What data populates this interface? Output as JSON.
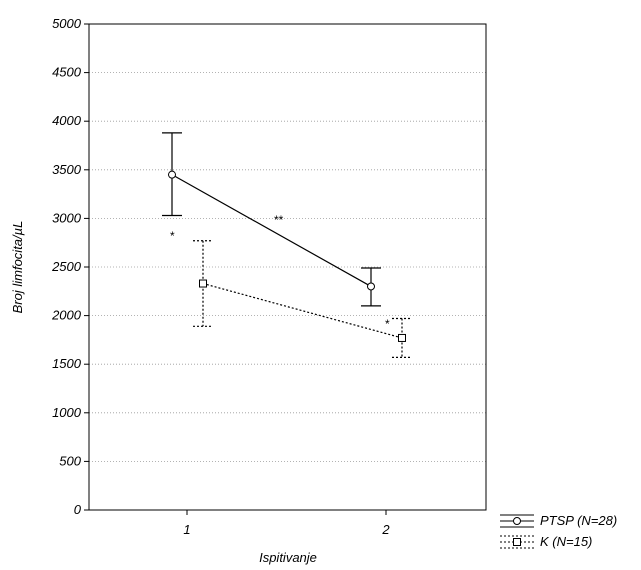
{
  "chart_data": {
    "type": "line",
    "xlabel": "Ispitivanje",
    "ylabel": "Broj limfocita/µL",
    "categories": [
      "1",
      "2"
    ],
    "ylim": [
      0,
      5000
    ],
    "yticks": [
      "0",
      "500",
      "1000",
      "1500",
      "2000",
      "2500",
      "3000",
      "3500",
      "4000",
      "4500",
      "5000"
    ],
    "grid": "horizontal dotted",
    "legend_position": "bottom-right, outside plot",
    "series": [
      {
        "name": "PTSP (N=28)",
        "marker": "circle",
        "line_style": "solid",
        "values": [
          3450,
          2300
        ],
        "error_low": [
          3030,
          2100
        ],
        "error_high": [
          3880,
          2490
        ]
      },
      {
        "name": "K (N=15)",
        "marker": "square",
        "line_style": "dotted",
        "values": [
          2330,
          1770
        ],
        "error_low": [
          1890,
          1570
        ],
        "error_high": [
          2770,
          1970
        ]
      }
    ],
    "annotations": [
      "*",
      "**",
      "*"
    ]
  }
}
